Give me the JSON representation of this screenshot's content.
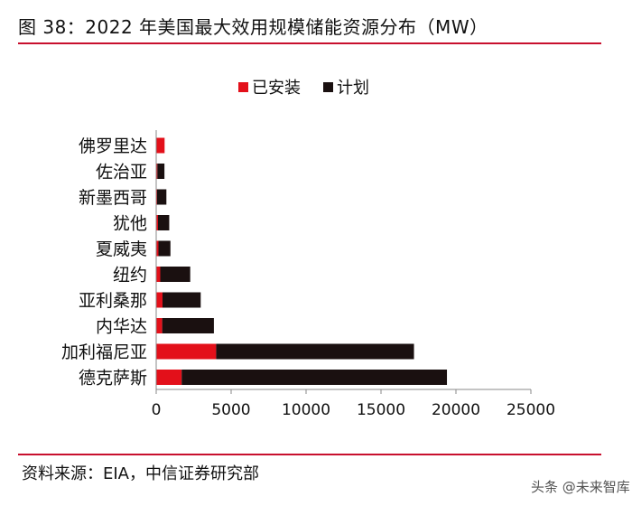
{
  "header": {
    "title": "图 38：2022 年美国最大效用规模储能资源分布（MW）"
  },
  "footer": {
    "source": "资料来源：EIA，中信证券研究部",
    "watermark": "头条 @未来智库"
  },
  "colors": {
    "installed": "#e3101a",
    "planned": "#1a1010",
    "rule": "#c8102e",
    "axis": "#888888"
  },
  "chart_data": {
    "type": "bar",
    "orientation": "horizontal",
    "stacked": true,
    "title": "2022 年美国最大效用规模储能资源分布（MW）",
    "categories": [
      "佛罗里达",
      "佐治亚",
      "新墨西哥",
      "犹他",
      "夏威夷",
      "纽约",
      "亚利桑那",
      "内华达",
      "加利福尼亚",
      "德克萨斯"
    ],
    "series": [
      {
        "name": "已安装",
        "values": [
          560,
          80,
          60,
          120,
          150,
          270,
          420,
          400,
          4000,
          1700
        ]
      },
      {
        "name": "计划",
        "values": [
          0,
          470,
          620,
          750,
          800,
          2000,
          2550,
          3450,
          13200,
          17700
        ]
      }
    ],
    "xlim": [
      0,
      25000
    ],
    "xticks": [
      0,
      5000,
      10000,
      15000,
      20000,
      25000
    ],
    "legend": [
      "已安装",
      "计划"
    ],
    "legend_position": "top",
    "xlabel": "",
    "ylabel": ""
  }
}
